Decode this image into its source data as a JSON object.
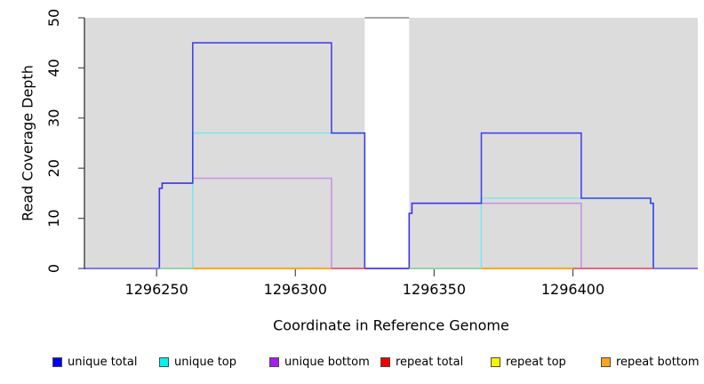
{
  "chart_data": {
    "type": "line",
    "subtype": "step-coverage-plot",
    "title": "",
    "xlabel": "Coordinate in Reference Genome",
    "ylabel": "Read Coverage Depth",
    "xlim": [
      1296224,
      1296445
    ],
    "ylim": [
      0,
      50
    ],
    "x_ticks": [
      "1296250",
      "1296300",
      "1296350",
      "1296400"
    ],
    "x_tick_values": [
      1296250,
      1296300,
      1296350,
      1296400
    ],
    "y_ticks": [
      "0",
      "10",
      "20",
      "30",
      "40",
      "50"
    ],
    "y_tick_values": [
      0,
      10,
      20,
      30,
      40,
      50
    ],
    "grid": false,
    "legend_position": "bottom",
    "series": [
      {
        "name": "unique total",
        "legend_color": "#0000ee",
        "breakpoints": [
          [
            1296224,
            0
          ],
          [
            1296251,
            16
          ],
          [
            1296252,
            17
          ],
          [
            1296263,
            45
          ],
          [
            1296313,
            27
          ],
          [
            1296325,
            0
          ],
          [
            1296341,
            11
          ],
          [
            1296342,
            13
          ],
          [
            1296367,
            27
          ],
          [
            1296403,
            14
          ],
          [
            1296428,
            13
          ],
          [
            1296429,
            0
          ]
        ]
      },
      {
        "name": "unique top",
        "legend_color": "#00f2f2",
        "breakpoints": [
          [
            1296224,
            0
          ],
          [
            1296263,
            27
          ],
          [
            1296325,
            0
          ],
          [
            1296367,
            14
          ],
          [
            1296428,
            13
          ],
          [
            1296429,
            0
          ]
        ]
      },
      {
        "name": "unique bottom",
        "legend_color": "#a21fef",
        "breakpoints": [
          [
            1296224,
            0
          ],
          [
            1296251,
            16
          ],
          [
            1296252,
            17
          ],
          [
            1296263,
            18
          ],
          [
            1296313,
            0
          ],
          [
            1296341,
            11
          ],
          [
            1296342,
            13
          ],
          [
            1296403,
            0
          ]
        ]
      },
      {
        "name": "repeat total",
        "legend_color": "#ee0000",
        "breakpoints": [
          [
            1296224,
            0
          ]
        ]
      },
      {
        "name": "repeat top",
        "legend_color": "#f5f500",
        "breakpoints": [
          [
            1296224,
            0
          ]
        ]
      },
      {
        "name": "repeat bottom",
        "legend_color": "#f5a623",
        "breakpoints": [
          [
            1296224,
            0
          ]
        ]
      }
    ],
    "masked_region": {
      "x_start": 1296325,
      "x_end": 1296341,
      "background": "white",
      "clipped_cap_value": 50
    },
    "baseline_segments": [
      {
        "from": 1296224,
        "to": 1296251,
        "color": "#8478ee"
      },
      {
        "from": 1296251,
        "to": 1296263,
        "color": "#8fd5a5"
      },
      {
        "from": 1296263,
        "to": 1296313,
        "color": "#ffa41e"
      },
      {
        "from": 1296313,
        "to": 1296325,
        "color": "#dd5878"
      },
      {
        "from": 1296325,
        "to": 1296341,
        "color": "#4b43ec"
      },
      {
        "from": 1296341,
        "to": 1296367,
        "color": "#8fd5a5"
      },
      {
        "from": 1296367,
        "to": 1296400,
        "color": "#ffa41e"
      },
      {
        "from": 1296400,
        "to": 1296429,
        "color": "#dd5878"
      },
      {
        "from": 1296429,
        "to": 1296445,
        "color": "#8478ee"
      }
    ]
  },
  "style": {
    "plot_background": "#dcdcdc",
    "masked_band_fill": "#ffffff",
    "masked_cap_color": "#8a8a8a",
    "axis_color": "#333333",
    "tick_color": "#4d4d4d",
    "text_color": "#000000",
    "line_unique_total": "#201bf2",
    "line_unique_total_opacity": 0.8,
    "line_unique_top": "#7fe6e8",
    "line_unique_bottom": "#c792e8"
  },
  "legend": {
    "items": [
      {
        "label": "unique total",
        "color": "#0000ee"
      },
      {
        "label": "unique top",
        "color": "#00f2f2"
      },
      {
        "label": "unique bottom",
        "color": "#a21fef"
      },
      {
        "label": "repeat total",
        "color": "#ee0000"
      },
      {
        "label": "repeat top",
        "color": "#f5f500"
      },
      {
        "label": "repeat bottom",
        "color": "#f5a623"
      }
    ]
  }
}
